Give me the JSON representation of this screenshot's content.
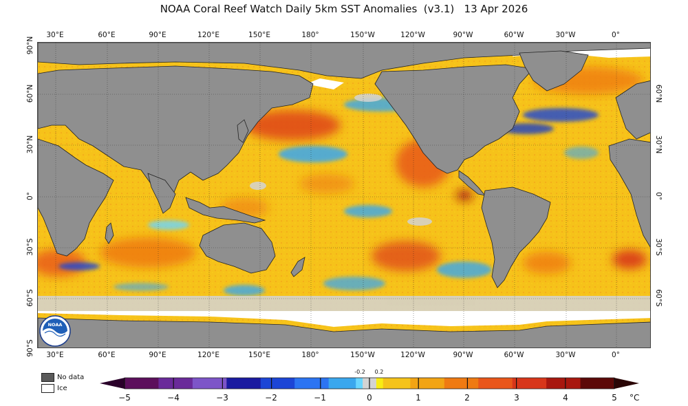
{
  "title": "NOAA Coral Reef Watch Daily 5km SST Anomalies  (v3.1)   13 Apr 2026",
  "colors": {
    "land": "#8f8f8f",
    "ice": "#ffffff",
    "no_data": "#5a5a5a",
    "near_zero": "#d3d3d3",
    "ocean_base": "#f6c21a",
    "warm": "#ef7a12",
    "hot": "#d8361a",
    "cool": "#3aa7ee",
    "cold": "#1b3fc4"
  },
  "map": {
    "top_ticks": [
      "30°E",
      "60°E",
      "90°E",
      "120°E",
      "150°E",
      "180°",
      "150°W",
      "120°W",
      "90°W",
      "60°W",
      "30°W",
      "0°"
    ],
    "bottom_ticks": [
      "30°E",
      "60°E",
      "90°E",
      "120°E",
      "150°E",
      "180°",
      "150°W",
      "120°W",
      "90°W",
      "60°W",
      "30°W",
      "0°"
    ],
    "left_ticks": [
      "90°N",
      "60°N",
      "30°N",
      "0°",
      "30°S",
      "60°S",
      "90°S"
    ],
    "right_ticks": [
      "60°N",
      "30°N",
      "0°",
      "30°S",
      "60°S"
    ]
  },
  "legend": {
    "no_data_label": "No data",
    "ice_label": "Ice"
  },
  "colorbar": {
    "ticks": [
      "−5",
      "−4",
      "−3",
      "−2",
      "−1",
      "0",
      "1",
      "2",
      "3",
      "4",
      "5"
    ],
    "small_labels": [
      "-0.2",
      "0.2"
    ],
    "unit": "°C",
    "range": [
      -5,
      5
    ],
    "colors": [
      "#5c0f5c",
      "#6a2a9a",
      "#7d55c8",
      "#1a1aa0",
      "#1c45d6",
      "#2c74f2",
      "#3aa7ee",
      "#6ad6ff",
      "#d3d3d3",
      "#f8ec14",
      "#f5c31a",
      "#f2a414",
      "#ef7a12",
      "#e9561a",
      "#d8361a",
      "#a8170f",
      "#5c0908"
    ]
  },
  "logo_text": "NOAA"
}
